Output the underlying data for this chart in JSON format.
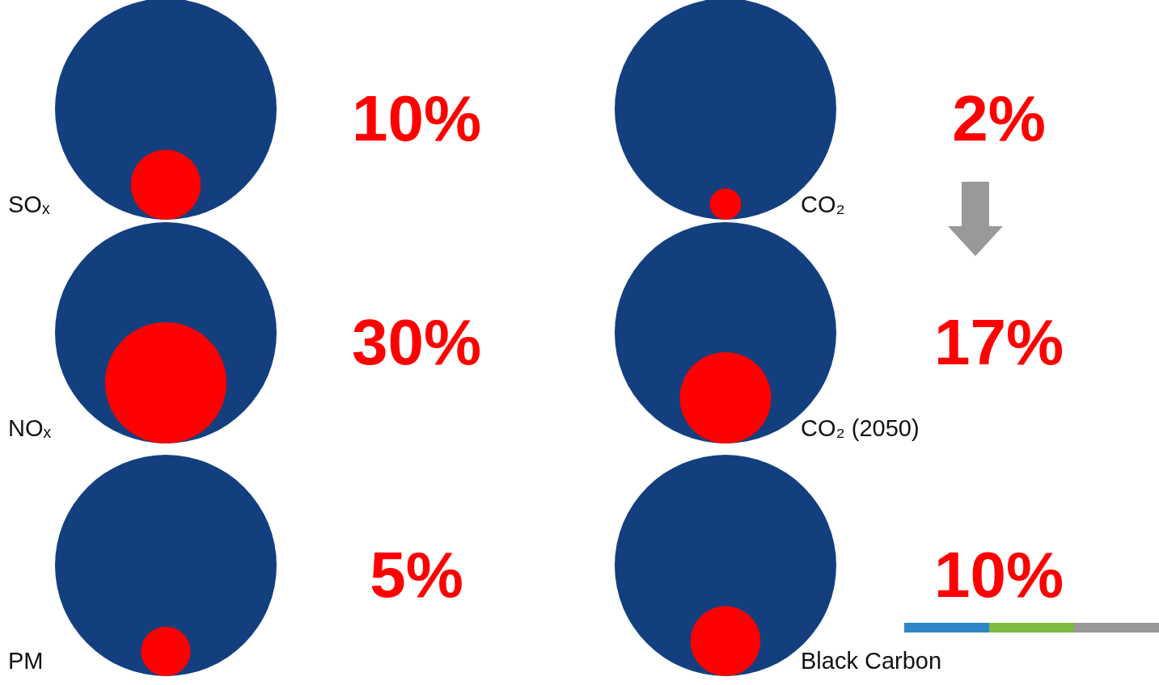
{
  "chart_data": {
    "type": "other",
    "categories": [
      "SOₓ",
      "CO₂",
      "NOₓ",
      "CO₂ (2050)",
      "PM",
      "Black Carbon"
    ],
    "values": [
      10,
      2,
      30,
      17,
      5,
      10
    ],
    "value_labels": [
      "10%",
      "2%",
      "30%",
      "17%",
      "5%",
      "10%"
    ],
    "color": "#ff0000"
  }
}
